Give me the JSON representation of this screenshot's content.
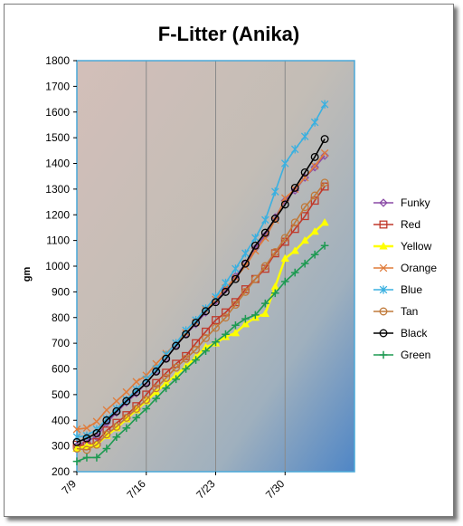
{
  "chart_data": {
    "type": "line",
    "title": "F-Litter (Anika)",
    "xlabel": "",
    "ylabel": "gm",
    "ylim": [
      200,
      1800
    ],
    "yticks": [
      200,
      300,
      400,
      500,
      600,
      700,
      800,
      900,
      1000,
      1100,
      1200,
      1300,
      1400,
      1500,
      1600,
      1700,
      1800
    ],
    "xticks": [
      "7/9",
      "7/16",
      "7/23",
      "7/30"
    ],
    "x_start": "7/9",
    "xlim_days": [
      0,
      28
    ],
    "grid": "vertical",
    "legend_position": "right",
    "x": [
      "7/9",
      "7/10",
      "7/11",
      "7/12",
      "7/13",
      "7/14",
      "7/15",
      "7/16",
      "7/17",
      "7/18",
      "7/19",
      "7/20",
      "7/21",
      "7/22",
      "7/23",
      "7/24",
      "7/25",
      "7/26",
      "7/27",
      "7/28",
      "7/29",
      "7/30",
      "7/31",
      "8/1",
      "8/2",
      "8/3",
      "8/4"
    ],
    "series": [
      {
        "name": "Funky",
        "color": "#8a4aa6",
        "marker": "diamond",
        "values": [
          300,
          320,
          335,
          390,
          430,
          470,
          505,
          545,
          590,
          640,
          690,
          735,
          775,
          820,
          865,
          910,
          960,
          1010,
          1070,
          1120,
          1190,
          1255,
          1295,
          1345,
          1385,
          1430,
          null
        ]
      },
      {
        "name": "Red",
        "color": "#c0392b",
        "marker": "square",
        "values": [
          305,
          300,
          315,
          360,
          390,
          420,
          455,
          500,
          545,
          585,
          620,
          650,
          700,
          745,
          790,
          820,
          860,
          910,
          950,
          990,
          1050,
          1095,
          1145,
          1195,
          1255,
          1310,
          null
        ]
      },
      {
        "name": "Yellow",
        "color": "#ffff00",
        "marker": "triangle",
        "values": [
          290,
          300,
          305,
          340,
          370,
          405,
          440,
          475,
          510,
          545,
          575,
          610,
          645,
          685,
          700,
          725,
          740,
          775,
          800,
          815,
          920,
          1030,
          1060,
          1100,
          1135,
          1170,
          null
        ]
      },
      {
        "name": "Orange",
        "color": "#e07b39",
        "marker": "x",
        "values": [
          365,
          370,
          395,
          440,
          475,
          510,
          550,
          575,
          620,
          660,
          700,
          740,
          780,
          830,
          870,
          915,
          955,
          1000,
          1060,
          1110,
          1180,
          1265,
          1300,
          1345,
          1390,
          1440,
          null
        ]
      },
      {
        "name": "Blue",
        "color": "#3ab0e0",
        "marker": "star",
        "values": [
          335,
          340,
          365,
          405,
          445,
          480,
          520,
          560,
          600,
          655,
          700,
          750,
          790,
          835,
          880,
          935,
          990,
          1050,
          1110,
          1180,
          1290,
          1400,
          1455,
          1505,
          1560,
          1630,
          null
        ]
      },
      {
        "name": "Tan",
        "color": "#c07a3a",
        "marker": "circle",
        "values": [
          290,
          285,
          305,
          345,
          375,
          410,
          445,
          480,
          525,
          565,
          605,
          640,
          675,
          720,
          760,
          800,
          850,
          900,
          950,
          1000,
          1055,
          1110,
          1170,
          1230,
          1275,
          1325,
          null
        ]
      },
      {
        "name": "Black",
        "color": "#000000",
        "marker": "circle",
        "values": [
          315,
          330,
          350,
          400,
          435,
          475,
          510,
          545,
          590,
          640,
          690,
          735,
          780,
          825,
          860,
          900,
          950,
          1010,
          1080,
          1130,
          1185,
          1240,
          1305,
          1365,
          1425,
          1495,
          null
        ]
      },
      {
        "name": "Green",
        "color": "#1e9a52",
        "marker": "plus",
        "values": [
          240,
          255,
          255,
          290,
          335,
          370,
          410,
          445,
          485,
          525,
          560,
          600,
          635,
          670,
          705,
          735,
          770,
          795,
          810,
          855,
          895,
          940,
          975,
          1010,
          1045,
          1080,
          null
        ]
      }
    ]
  }
}
